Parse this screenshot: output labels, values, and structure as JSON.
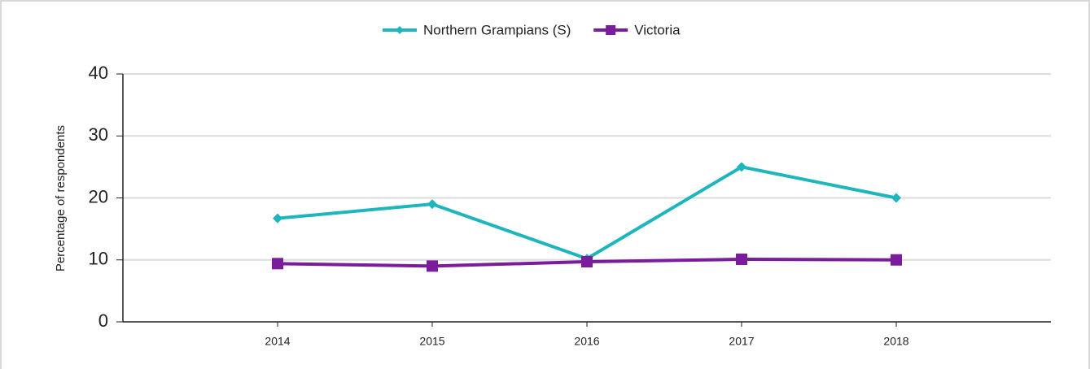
{
  "chart_data": {
    "type": "line",
    "y_label": "Percentage of respondents",
    "categories": [
      "2014",
      "2015",
      "2016",
      "2017",
      "2018"
    ],
    "series": [
      {
        "name": "Northern Grampians (S)",
        "color": "#1fb5bd",
        "marker": "diamond",
        "values": [
          16.7,
          19.0,
          10.2,
          25.0,
          20.0
        ]
      },
      {
        "name": "Victoria",
        "color": "#7b1c9c",
        "marker": "square",
        "values": [
          9.4,
          9.0,
          9.7,
          10.1,
          10.0
        ]
      }
    ],
    "ylim": [
      0,
      40
    ],
    "yticks": [
      0,
      10,
      20,
      30,
      40
    ],
    "grid": true,
    "legend": "top"
  }
}
